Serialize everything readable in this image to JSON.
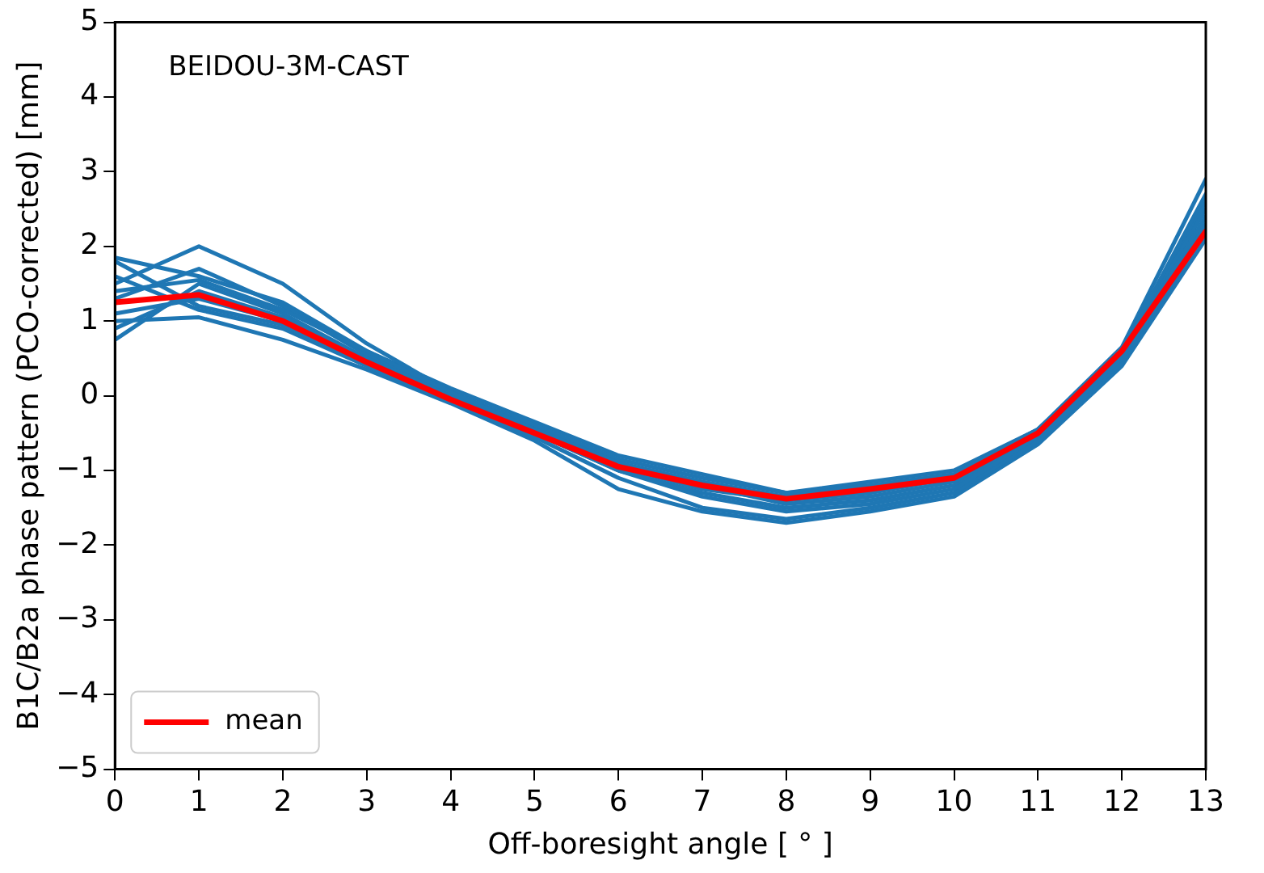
{
  "chart_data": {
    "type": "line",
    "xlabel": "Off-boresight angle [ ° ]",
    "ylabel": "B1C/B2a phase pattern (PCO-corrected) [mm]",
    "annotations": [
      "BEIDOU-3M-CAST"
    ],
    "x": [
      0,
      1,
      2,
      3,
      4,
      5,
      6,
      7,
      8,
      9,
      10,
      11,
      12,
      13
    ],
    "xlim": [
      0,
      13
    ],
    "xticks": [
      0,
      1,
      2,
      3,
      4,
      5,
      6,
      7,
      8,
      9,
      10,
      11,
      12,
      13
    ],
    "ylim": [
      -5,
      5
    ],
    "yticks": [
      {
        "value": -5,
        "label": "−5"
      },
      {
        "value": -4,
        "label": "−4"
      },
      {
        "value": -3,
        "label": "−3"
      },
      {
        "value": -2,
        "label": "−2"
      },
      {
        "value": -1,
        "label": "−1"
      },
      0,
      1,
      2,
      3,
      4,
      5
    ],
    "grid": false,
    "legend": "bottom left",
    "marker": "none",
    "line_style": "solid",
    "series": [
      {
        "color": "#1f77b4",
        "values": [
          1.85,
          1.6,
          1.25,
          0.6,
          0.1,
          -0.35,
          -0.8,
          -1.05,
          -1.3,
          -1.15,
          -1.0,
          -0.45,
          0.65,
          2.9
        ]
      },
      {
        "color": "#1f77b4",
        "values": [
          1.5,
          2.0,
          1.5,
          0.7,
          0.05,
          -0.45,
          -0.9,
          -1.2,
          -1.4,
          -1.3,
          -1.1,
          -0.5,
          0.6,
          2.6
        ]
      },
      {
        "color": "#1f77b4",
        "values": [
          0.75,
          1.5,
          1.1,
          0.5,
          0.0,
          -0.5,
          -1.0,
          -1.3,
          -1.5,
          -1.4,
          -1.2,
          -0.55,
          0.5,
          2.4
        ]
      },
      {
        "color": "#1f77b4",
        "values": [
          1.0,
          1.05,
          0.75,
          0.35,
          -0.1,
          -0.6,
          -1.25,
          -1.55,
          -1.7,
          -1.55,
          -1.35,
          -0.65,
          0.4,
          2.1
        ]
      },
      {
        "color": "#1f77b4",
        "values": [
          1.6,
          1.15,
          0.9,
          0.4,
          -0.05,
          -0.55,
          -1.1,
          -1.5,
          -1.65,
          -1.5,
          -1.3,
          -0.6,
          0.45,
          2.2
        ]
      },
      {
        "color": "#1f77b4",
        "values": [
          1.3,
          1.7,
          1.2,
          0.55,
          0.05,
          -0.4,
          -0.85,
          -1.1,
          -1.3,
          -1.2,
          -1.05,
          -0.45,
          0.6,
          2.5
        ]
      },
      {
        "color": "#1f77b4",
        "values": [
          1.1,
          1.3,
          1.0,
          0.45,
          -0.05,
          -0.5,
          -0.95,
          -1.25,
          -1.4,
          -1.25,
          -1.1,
          -0.5,
          0.55,
          2.3
        ]
      },
      {
        "color": "#1f77b4",
        "values": [
          0.9,
          1.4,
          1.05,
          0.5,
          0.0,
          -0.45,
          -0.9,
          -1.15,
          -1.35,
          -1.2,
          -1.05,
          -0.45,
          0.6,
          2.7
        ]
      },
      {
        "color": "#1f77b4",
        "values": [
          1.8,
          1.2,
          0.95,
          0.45,
          -0.05,
          -0.5,
          -1.0,
          -1.35,
          -1.55,
          -1.45,
          -1.25,
          -0.55,
          0.5,
          2.2
        ]
      },
      {
        "color": "#1f77b4",
        "values": [
          1.4,
          1.55,
          1.15,
          0.6,
          0.05,
          -0.45,
          -0.9,
          -1.2,
          -1.45,
          -1.35,
          -1.15,
          -0.5,
          0.55,
          2.4
        ]
      },
      {
        "name": "mean",
        "color": "#ff0000",
        "values": [
          1.25,
          1.35,
          1.0,
          0.45,
          -0.05,
          -0.5,
          -0.95,
          -1.2,
          -1.38,
          -1.25,
          -1.1,
          -0.5,
          0.6,
          2.2
        ]
      }
    ]
  }
}
